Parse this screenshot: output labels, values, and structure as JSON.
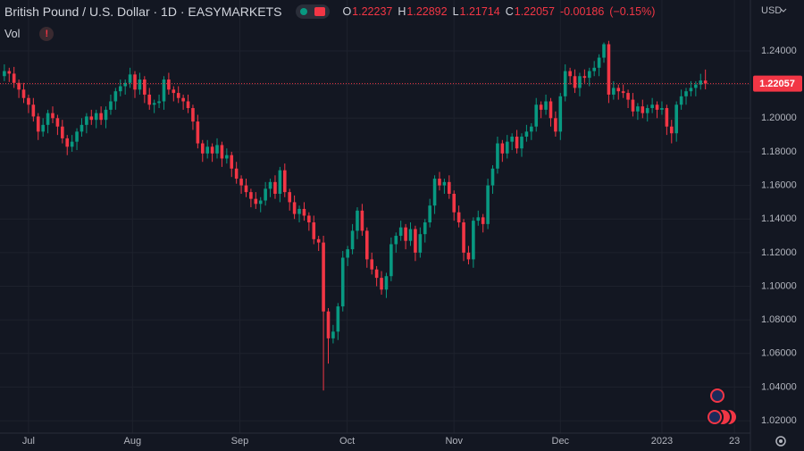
{
  "chart_data": {
    "type": "candlestick",
    "title": "British Pound / U.S. Dollar · 1D · EASYMARKETS",
    "vol_label": "Vol",
    "currency": "USD",
    "ohlc_labels": [
      "O",
      "H",
      "L",
      "C"
    ],
    "change": -0.00186,
    "change_pct": {
      "value": -0.15,
      "label": "(−0.15%)"
    },
    "up_color": "#089981",
    "down_color": "#f23645",
    "grid": true,
    "xlim": [
      -0.9,
      154.3
    ],
    "xticks": [
      {
        "value": 5,
        "label": "Jul"
      },
      {
        "value": 26.5,
        "label": "Aug"
      },
      {
        "value": 48.7,
        "label": "Sep"
      },
      {
        "value": 70.9,
        "label": "Oct"
      },
      {
        "value": 93,
        "label": "Nov"
      },
      {
        "value": 115,
        "label": "Dec"
      },
      {
        "value": 136,
        "label": "2023"
      },
      {
        "value": 151,
        "label": "23"
      }
    ],
    "ylim": [
      1.0126,
      1.2703
    ],
    "yticks": [
      {
        "value": 1.02,
        "label": "1.02000"
      },
      {
        "value": 1.04,
        "label": "1.04000"
      },
      {
        "value": 1.06,
        "label": "1.06000"
      },
      {
        "value": 1.08,
        "label": "1.08000"
      },
      {
        "value": 1.1,
        "label": "1.10000"
      },
      {
        "value": 1.12,
        "label": "1.12000"
      },
      {
        "value": 1.14,
        "label": "1.14000"
      },
      {
        "value": 1.16,
        "label": "1.16000"
      },
      {
        "value": 1.18,
        "label": "1.18000"
      },
      {
        "value": 1.2,
        "label": "1.20000"
      },
      {
        "value": 1.22,
        "label": "1.22000"
      },
      {
        "value": 1.24,
        "label": "1.24000"
      }
    ],
    "open": [
      1.225,
      1.228,
      1.2265,
      1.221,
      1.217,
      1.212,
      1.208,
      1.201,
      1.192,
      1.196,
      1.203,
      1.2,
      1.195,
      1.188,
      1.183,
      1.186,
      1.192,
      1.196,
      1.201,
      1.199,
      1.203,
      1.199,
      1.205,
      1.21,
      1.216,
      1.219,
      1.221,
      1.226,
      1.217,
      1.223,
      1.214,
      1.208,
      1.209,
      1.21,
      1.223,
      1.217,
      1.215,
      1.212,
      1.21,
      1.206,
      1.198,
      1.185,
      1.179,
      1.183,
      1.179,
      1.184,
      1.176,
      1.178,
      1.17,
      1.164,
      1.16,
      1.156,
      1.152,
      1.149,
      1.151,
      1.158,
      1.162,
      1.155,
      1.169,
      1.156,
      1.15,
      1.143,
      1.146,
      1.142,
      1.138,
      1.128,
      1.126,
      1.085,
      1.069,
      1.073,
      1.088,
      1.117,
      1.122,
      1.133,
      1.145,
      1.133,
      1.116,
      1.11,
      1.105,
      1.098,
      1.106,
      1.125,
      1.13,
      1.135,
      1.127,
      1.134,
      1.12,
      1.131,
      1.138,
      1.148,
      1.164,
      1.16,
      1.162,
      1.155,
      1.144,
      1.138,
      1.12,
      1.116,
      1.139,
      1.141,
      1.137,
      1.16,
      1.17,
      1.185,
      1.179,
      1.186,
      1.189,
      1.182,
      1.189,
      1.192,
      1.195,
      1.208,
      1.205,
      1.21,
      1.2,
      1.192,
      1.213,
      1.228,
      1.225,
      1.218,
      1.225,
      1.224,
      1.228,
      1.23,
      1.236,
      1.244,
      1.214,
      1.218,
      1.216,
      1.215,
      1.211,
      1.204,
      1.207,
      1.203,
      1.206,
      1.208,
      1.205,
      1.206,
      1.195,
      1.191,
      1.208,
      1.213,
      1.216,
      1.218,
      1.22,
      1.22237
    ],
    "high": [
      1.232,
      1.23,
      1.2305,
      1.223,
      1.221,
      1.214,
      1.212,
      1.203,
      1.2,
      1.205,
      1.207,
      1.202,
      1.199,
      1.19,
      1.19,
      1.194,
      1.2,
      1.203,
      1.205,
      1.205,
      1.207,
      1.207,
      1.214,
      1.218,
      1.223,
      1.223,
      1.23,
      1.228,
      1.227,
      1.225,
      1.218,
      1.211,
      1.214,
      1.225,
      1.227,
      1.219,
      1.219,
      1.214,
      1.214,
      1.208,
      1.202,
      1.187,
      1.187,
      1.185,
      1.188,
      1.186,
      1.182,
      1.18,
      1.174,
      1.166,
      1.164,
      1.158,
      1.156,
      1.153,
      1.162,
      1.164,
      1.166,
      1.171,
      1.173,
      1.158,
      1.154,
      1.148,
      1.15,
      1.144,
      1.142,
      1.13,
      1.13,
      1.087,
      1.077,
      1.09,
      1.121,
      1.124,
      1.137,
      1.147,
      1.149,
      1.135,
      1.12,
      1.112,
      1.109,
      1.108,
      1.129,
      1.132,
      1.139,
      1.137,
      1.138,
      1.136,
      1.135,
      1.14,
      1.152,
      1.166,
      1.168,
      1.164,
      1.166,
      1.157,
      1.148,
      1.14,
      1.124,
      1.141,
      1.145,
      1.143,
      1.164,
      1.172,
      1.189,
      1.187,
      1.19,
      1.191,
      1.193,
      1.191,
      1.196,
      1.197,
      1.212,
      1.21,
      1.214,
      1.212,
      1.204,
      1.215,
      1.232,
      1.23,
      1.229,
      1.227,
      1.229,
      1.23,
      1.234,
      1.238,
      1.245,
      1.246,
      1.222,
      1.22,
      1.22,
      1.217,
      1.215,
      1.209,
      1.211,
      1.208,
      1.212,
      1.21,
      1.21,
      1.208,
      1.199,
      1.21,
      1.217,
      1.218,
      1.222,
      1.222,
      1.2264,
      1.22892
    ],
    "low": [
      1.222,
      1.2215,
      1.218,
      1.212,
      1.209,
      1.203,
      1.198,
      1.187,
      1.189,
      1.191,
      1.197,
      1.19,
      1.185,
      1.178,
      1.18,
      1.181,
      1.189,
      1.191,
      1.196,
      1.194,
      1.196,
      1.194,
      1.202,
      1.205,
      1.213,
      1.214,
      1.218,
      1.212,
      1.214,
      1.209,
      1.205,
      1.203,
      1.206,
      1.205,
      1.214,
      1.21,
      1.209,
      1.205,
      1.203,
      1.193,
      1.182,
      1.174,
      1.176,
      1.174,
      1.176,
      1.171,
      1.173,
      1.165,
      1.161,
      1.155,
      1.153,
      1.147,
      1.146,
      1.144,
      1.148,
      1.153,
      1.152,
      1.15,
      1.153,
      1.145,
      1.14,
      1.138,
      1.139,
      1.133,
      1.125,
      1.121,
      1.038,
      1.054,
      1.066,
      1.068,
      1.085,
      1.112,
      1.119,
      1.128,
      1.13,
      1.111,
      1.107,
      1.1,
      1.095,
      1.093,
      1.103,
      1.12,
      1.127,
      1.122,
      1.124,
      1.115,
      1.117,
      1.126,
      1.135,
      1.143,
      1.157,
      1.155,
      1.152,
      1.139,
      1.135,
      1.115,
      1.113,
      1.111,
      1.136,
      1.132,
      1.134,
      1.155,
      1.167,
      1.174,
      1.176,
      1.181,
      1.179,
      1.177,
      1.186,
      1.187,
      1.192,
      1.2,
      1.202,
      1.195,
      1.189,
      1.187,
      1.21,
      1.22,
      1.215,
      1.213,
      1.221,
      1.219,
      1.225,
      1.225,
      1.233,
      1.209,
      1.211,
      1.211,
      1.212,
      1.206,
      1.201,
      1.199,
      1.2,
      1.198,
      1.203,
      1.2,
      1.202,
      1.19,
      1.185,
      1.186,
      1.205,
      1.208,
      1.213,
      1.213,
      1.217,
      1.21714
    ],
    "close": [
      1.228,
      1.2265,
      1.221,
      1.217,
      1.212,
      1.208,
      1.201,
      1.192,
      1.196,
      1.203,
      1.2,
      1.195,
      1.188,
      1.183,
      1.186,
      1.192,
      1.196,
      1.201,
      1.199,
      1.203,
      1.199,
      1.205,
      1.21,
      1.216,
      1.219,
      1.221,
      1.226,
      1.217,
      1.223,
      1.214,
      1.208,
      1.209,
      1.21,
      1.223,
      1.217,
      1.215,
      1.212,
      1.21,
      1.206,
      1.198,
      1.185,
      1.179,
      1.183,
      1.179,
      1.184,
      1.176,
      1.178,
      1.17,
      1.164,
      1.16,
      1.156,
      1.152,
      1.149,
      1.151,
      1.158,
      1.162,
      1.155,
      1.169,
      1.156,
      1.15,
      1.143,
      1.146,
      1.142,
      1.138,
      1.128,
      1.126,
      1.085,
      1.069,
      1.073,
      1.088,
      1.117,
      1.122,
      1.133,
      1.145,
      1.133,
      1.116,
      1.11,
      1.105,
      1.098,
      1.106,
      1.125,
      1.13,
      1.135,
      1.127,
      1.134,
      1.12,
      1.131,
      1.138,
      1.148,
      1.164,
      1.16,
      1.162,
      1.155,
      1.144,
      1.138,
      1.12,
      1.116,
      1.139,
      1.141,
      1.137,
      1.16,
      1.17,
      1.185,
      1.179,
      1.186,
      1.189,
      1.182,
      1.189,
      1.192,
      1.195,
      1.208,
      1.205,
      1.21,
      1.2,
      1.192,
      1.213,
      1.228,
      1.225,
      1.218,
      1.225,
      1.224,
      1.228,
      1.23,
      1.236,
      1.244,
      1.214,
      1.218,
      1.216,
      1.215,
      1.211,
      1.204,
      1.207,
      1.203,
      1.206,
      1.208,
      1.205,
      1.206,
      1.195,
      1.191,
      1.208,
      1.213,
      1.216,
      1.218,
      1.22,
      1.2224,
      1.22057
    ]
  }
}
